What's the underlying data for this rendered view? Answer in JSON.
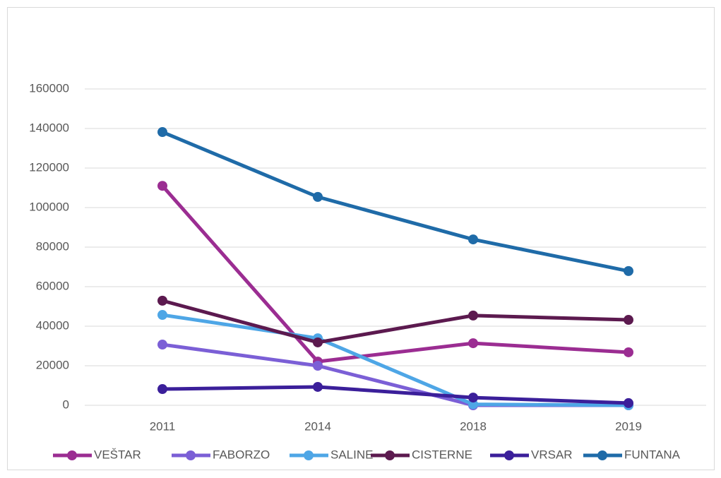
{
  "chart_data": {
    "type": "line",
    "categories": [
      "2011",
      "2014",
      "2018",
      "2019"
    ],
    "series": [
      {
        "name": "VEŠTAR",
        "color": "#9b2d92",
        "values": [
          111000,
          22100,
          31400,
          26800
        ]
      },
      {
        "name": "FABORZO",
        "color": "#7b5fd6",
        "values": [
          30700,
          20000,
          0,
          0
        ]
      },
      {
        "name": "SALINE",
        "color": "#4ea6e6",
        "values": [
          45700,
          33900,
          500,
          0
        ]
      },
      {
        "name": "CISTERNE",
        "color": "#5c1a4f",
        "values": [
          52900,
          31800,
          45400,
          43200
        ]
      },
      {
        "name": "VRSAR",
        "color": "#3b1f9a",
        "values": [
          8200,
          9300,
          3900,
          1100
        ]
      },
      {
        "name": "FUNTANA",
        "color": "#1f6ba8",
        "values": [
          138200,
          105400,
          83900,
          67900
        ]
      }
    ],
    "ylim": [
      0,
      160000
    ],
    "yticks": [
      0,
      20000,
      40000,
      60000,
      80000,
      100000,
      120000,
      140000,
      160000
    ],
    "grid": true,
    "legend": "bottom"
  }
}
